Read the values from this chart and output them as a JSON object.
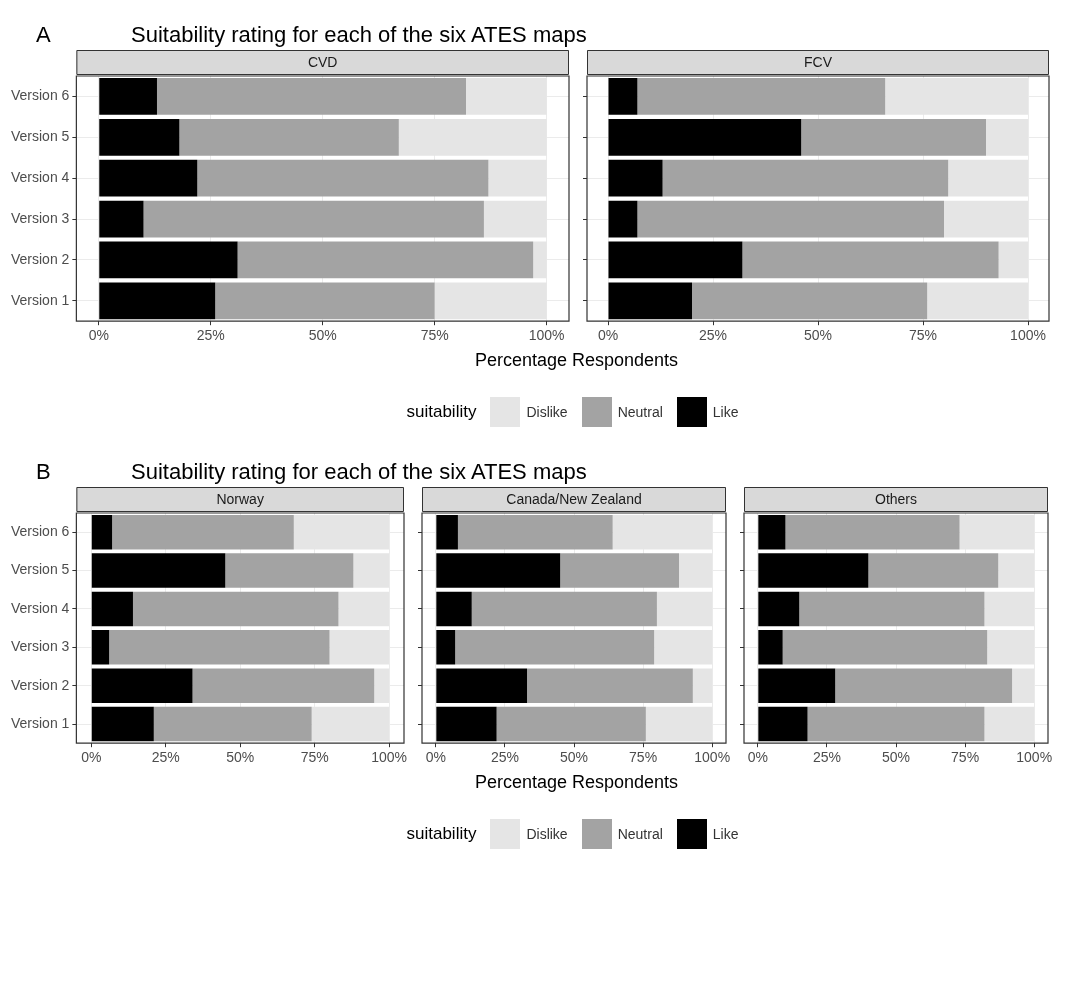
{
  "chart_data": [
    {
      "type": "bar",
      "title": "Suitability rating for each of the six ATES maps",
      "annotations": [
        "A"
      ],
      "subtitle": "CVD",
      "xlabel": "Percentage Respondents",
      "legend_title": "suitability",
      "legend": "bottom",
      "orientation": "horizontal",
      "stacked": true,
      "grid": true,
      "categories": [
        "Version 6",
        "Version 5",
        "Version 4",
        "Version 3",
        "Version 2",
        "Version 1"
      ],
      "xlim": [
        -5,
        105
      ],
      "xticks": [
        {
          "value": 0,
          "label": "0%"
        },
        {
          "value": 25,
          "label": "25%"
        },
        {
          "value": 50,
          "label": "50%"
        },
        {
          "value": 75,
          "label": "75%"
        },
        {
          "value": 100,
          "label": "100%"
        }
      ],
      "series": [
        {
          "name": "Like",
          "color": "#000000",
          "values": [
            13,
            18,
            22,
            10,
            31,
            26
          ]
        },
        {
          "name": "Neutral",
          "color": "#a3a3a3",
          "values": [
            69,
            49,
            65,
            76,
            66,
            49
          ]
        },
        {
          "name": "Dislike",
          "color": "#e5e5e5",
          "values": [
            18,
            33,
            13,
            14,
            3,
            25
          ]
        }
      ]
    },
    {
      "type": "bar",
      "subtitle": "FCV",
      "orientation": "horizontal",
      "stacked": true,
      "grid": true,
      "tick_labels": "x",
      "categories": [
        null,
        null,
        null,
        null,
        null,
        null
      ],
      "xlim": [
        -5,
        105
      ],
      "xticks": [
        {
          "value": 0,
          "label": "0%"
        },
        {
          "value": 25,
          "label": "25%"
        },
        {
          "value": 50,
          "label": "50%"
        },
        {
          "value": 75,
          "label": "75%"
        },
        {
          "value": 100,
          "label": "100%"
        }
      ],
      "series": [
        {
          "color": "#000000",
          "values": [
            7,
            46,
            13,
            7,
            32,
            20
          ]
        },
        {
          "color": "#a3a3a3",
          "values": [
            59,
            44,
            68,
            73,
            61,
            56
          ]
        },
        {
          "color": "#e5e5e5",
          "values": [
            34,
            10,
            19,
            20,
            7,
            24
          ]
        }
      ]
    },
    {
      "type": "bar",
      "title": "Suitability rating for each of the six ATES maps",
      "annotations": [
        "B"
      ],
      "subtitle": "Norway",
      "xlabel": "Percentage Respondents",
      "legend_title": "suitability",
      "legend": "bottom",
      "orientation": "horizontal",
      "stacked": true,
      "grid": true,
      "categories": [
        "Version 6",
        "Version 5",
        "Version 4",
        "Version 3",
        "Version 2",
        "Version 1"
      ],
      "xlim": [
        -5,
        105
      ],
      "xticks": [
        {
          "value": 0,
          "label": "0%"
        },
        {
          "value": 25,
          "label": "25%"
        },
        {
          "value": 50,
          "label": "50%"
        },
        {
          "value": 75,
          "label": "75%"
        },
        {
          "value": 100,
          "label": "100%"
        }
      ],
      "series": [
        {
          "name": "Like",
          "color": "#000000",
          "values": [
            7,
            45,
            14,
            6,
            34,
            21
          ]
        },
        {
          "name": "Neutral",
          "color": "#a3a3a3",
          "values": [
            61,
            43,
            69,
            74,
            61,
            53
          ]
        },
        {
          "name": "Dislike",
          "color": "#e5e5e5",
          "values": [
            32,
            12,
            17,
            20,
            5,
            26
          ]
        }
      ]
    },
    {
      "type": "bar",
      "subtitle": "Canada/New Zealand",
      "orientation": "horizontal",
      "stacked": true,
      "grid": true,
      "tick_labels": "x",
      "categories": [
        null,
        null,
        null,
        null,
        null,
        null
      ],
      "xlim": [
        -5,
        105
      ],
      "xticks": [
        {
          "value": 0,
          "label": "0%"
        },
        {
          "value": 25,
          "label": "25%"
        },
        {
          "value": 50,
          "label": "50%"
        },
        {
          "value": 75,
          "label": "75%"
        },
        {
          "value": 100,
          "label": "100%"
        }
      ],
      "series": [
        {
          "color": "#000000",
          "values": [
            8,
            45,
            13,
            7,
            33,
            22
          ]
        },
        {
          "color": "#a3a3a3",
          "values": [
            56,
            43,
            67,
            72,
            60,
            54
          ]
        },
        {
          "color": "#e5e5e5",
          "values": [
            36,
            12,
            20,
            21,
            7,
            24
          ]
        }
      ]
    },
    {
      "type": "bar",
      "subtitle": "Others",
      "orientation": "horizontal",
      "stacked": true,
      "grid": true,
      "tick_labels": "x",
      "categories": [
        null,
        null,
        null,
        null,
        null,
        null
      ],
      "xlim": [
        -5,
        105
      ],
      "xticks": [
        {
          "value": 0,
          "label": "0%"
        },
        {
          "value": 25,
          "label": "25%"
        },
        {
          "value": 50,
          "label": "50%"
        },
        {
          "value": 75,
          "label": "75%"
        },
        {
          "value": 100,
          "label": "100%"
        }
      ],
      "series": [
        {
          "color": "#000000",
          "values": [
            10,
            40,
            15,
            9,
            28,
            18
          ]
        },
        {
          "color": "#a3a3a3",
          "values": [
            63,
            47,
            67,
            74,
            64,
            64
          ]
        },
        {
          "color": "#e5e5e5",
          "values": [
            27,
            13,
            18,
            17,
            8,
            18
          ]
        }
      ]
    }
  ]
}
